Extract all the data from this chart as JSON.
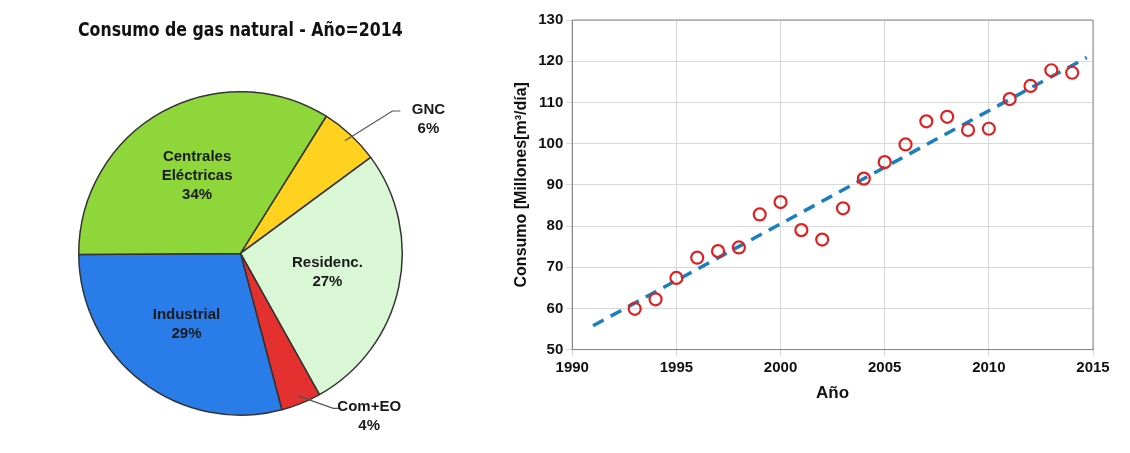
{
  "chart_data": [
    {
      "type": "pie",
      "title": "Consumo de gas natural - Año=2014",
      "categories": [
        "GNC",
        "Residenc.",
        "Com+EO",
        "Industrial",
        "Centrales Eléctricas"
      ],
      "values": [
        6,
        27,
        4,
        29,
        34
      ],
      "colors": [
        "#ffd21f",
        "#d9f7d5",
        "#e53030",
        "#2a7de8",
        "#8fd63a"
      ],
      "value_labels": [
        "6%",
        "27%",
        "4%",
        "29%",
        "34%"
      ],
      "legend": false
    },
    {
      "type": "scatter",
      "xlabel": "Año",
      "ylabel": "Consumo [Millones[m³/día]",
      "xlim": [
        1990,
        2015
      ],
      "xticks": [
        1990,
        1995,
        2000,
        2005,
        2010,
        2015
      ],
      "ylim": [
        50,
        130
      ],
      "yticks": [
        50,
        60,
        70,
        80,
        90,
        100,
        110,
        120,
        130
      ],
      "grid": true,
      "legend": false,
      "series": [
        {
          "type": "scatter",
          "marker": "circle",
          "color": "#e02020",
          "x": [
            1993,
            1994,
            1995,
            1996,
            1997,
            1998,
            1999,
            2000,
            2001,
            2002,
            2003,
            2004,
            2005,
            2006,
            2007,
            2008,
            2009,
            2010,
            2011,
            2012,
            2013,
            2014
          ],
          "values": [
            59.9,
            62.2,
            67.4,
            72.3,
            73.9,
            74.8,
            82.8,
            85.8,
            79.0,
            76.7,
            84.3,
            91.5,
            95.5,
            99.8,
            105.4,
            106.5,
            103.3,
            103.6,
            110.8,
            114.0,
            117.8,
            117.2
          ]
        },
        {
          "type": "line",
          "color": "#1a7fc1",
          "line_style": "dashed",
          "x": [
            1991,
            2014.7
          ],
          "values": [
            55.8,
            120.9
          ]
        }
      ]
    }
  ]
}
